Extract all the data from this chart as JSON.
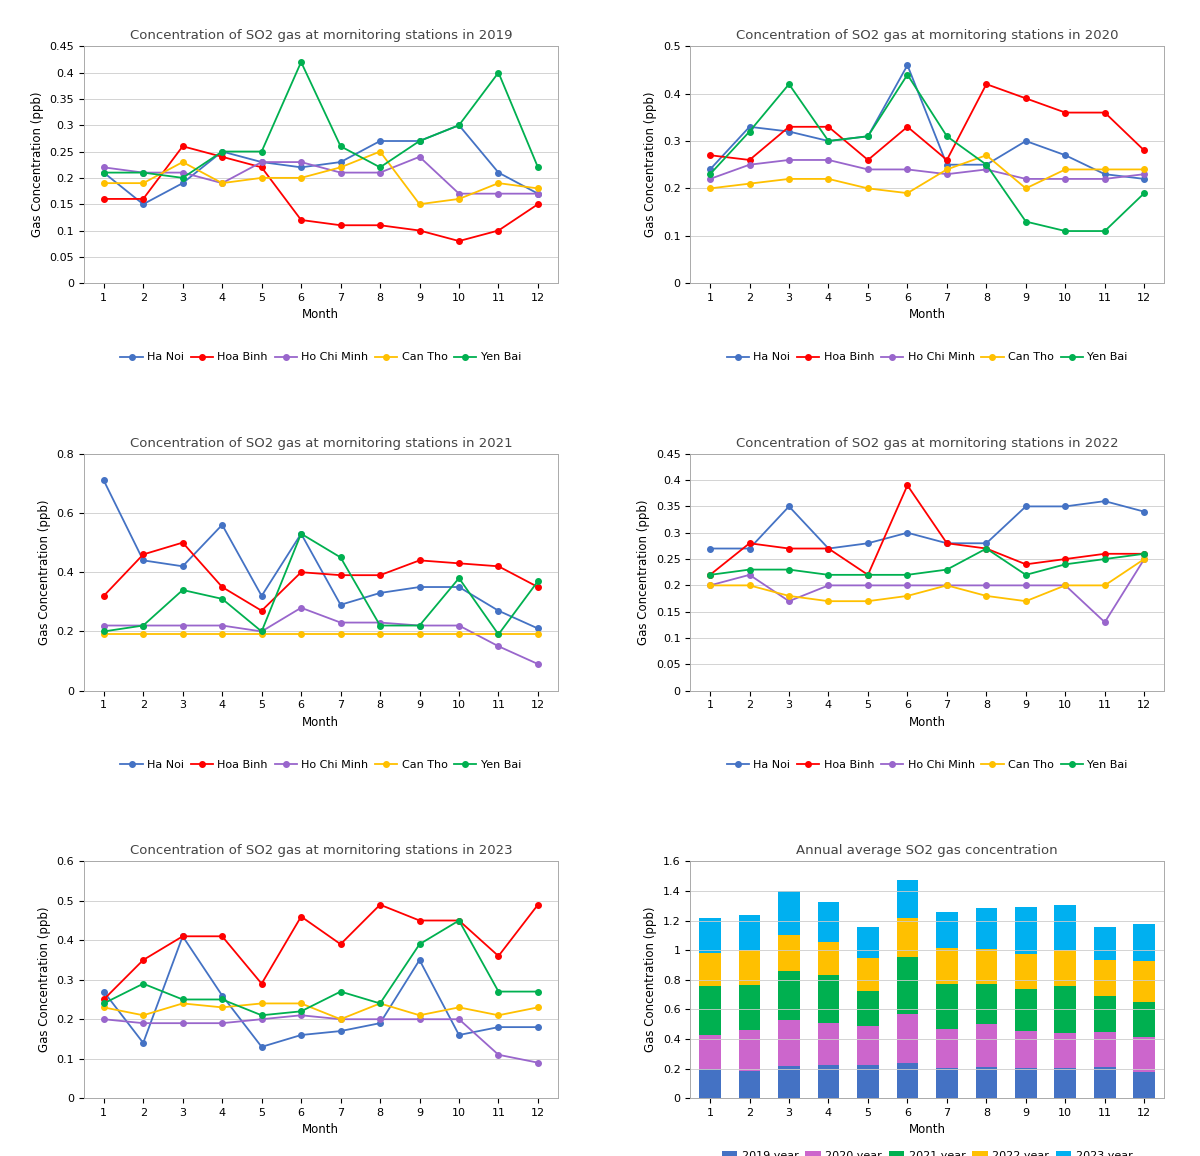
{
  "months": [
    1,
    2,
    3,
    4,
    5,
    6,
    7,
    8,
    9,
    10,
    11,
    12
  ],
  "y2019": {
    "Ha Noi": [
      0.21,
      0.15,
      0.19,
      0.25,
      0.23,
      0.22,
      0.23,
      0.27,
      0.27,
      0.3,
      0.21,
      0.17
    ],
    "Hoa Binh": [
      0.16,
      0.16,
      0.26,
      0.24,
      0.22,
      0.12,
      0.11,
      0.11,
      0.1,
      0.08,
      0.1,
      0.15
    ],
    "Ho Chi Minh": [
      0.22,
      0.21,
      0.21,
      0.19,
      0.23,
      0.23,
      0.21,
      0.21,
      0.24,
      0.17,
      0.17,
      0.17
    ],
    "Can Tho": [
      0.19,
      0.19,
      0.23,
      0.19,
      0.2,
      0.2,
      0.22,
      0.25,
      0.15,
      0.16,
      0.19,
      0.18
    ],
    "Yen Bai": [
      0.21,
      0.21,
      0.2,
      0.25,
      0.25,
      0.42,
      0.26,
      0.22,
      0.27,
      0.3,
      0.4,
      0.22
    ]
  },
  "y2020": {
    "Ha Noi": [
      0.24,
      0.33,
      0.32,
      0.3,
      0.31,
      0.46,
      0.25,
      0.25,
      0.3,
      0.27,
      0.23,
      0.22
    ],
    "Hoa Binh": [
      0.27,
      0.26,
      0.33,
      0.33,
      0.26,
      0.33,
      0.26,
      0.42,
      0.39,
      0.36,
      0.36,
      0.28
    ],
    "Ho Chi Minh": [
      0.22,
      0.25,
      0.26,
      0.26,
      0.24,
      0.24,
      0.23,
      0.24,
      0.22,
      0.22,
      0.22,
      0.23
    ],
    "Can Tho": [
      0.2,
      0.21,
      0.22,
      0.22,
      0.2,
      0.19,
      0.24,
      0.27,
      0.2,
      0.24,
      0.24,
      0.24
    ],
    "Yen Bai": [
      0.23,
      0.32,
      0.42,
      0.3,
      0.31,
      0.44,
      0.31,
      0.25,
      0.13,
      0.11,
      0.11,
      0.19
    ]
  },
  "y2021": {
    "Ha Noi": [
      0.71,
      0.44,
      0.42,
      0.56,
      0.32,
      0.53,
      0.29,
      0.33,
      0.35,
      0.35,
      0.27,
      0.21
    ],
    "Hoa Binh": [
      0.32,
      0.46,
      0.5,
      0.35,
      0.27,
      0.4,
      0.39,
      0.39,
      0.44,
      0.43,
      0.42,
      0.35
    ],
    "Ho Chi Minh": [
      0.22,
      0.22,
      0.22,
      0.22,
      0.2,
      0.28,
      0.23,
      0.23,
      0.22,
      0.22,
      0.15,
      0.09
    ],
    "Can Tho": [
      0.19,
      0.19,
      0.19,
      0.19,
      0.19,
      0.19,
      0.19,
      0.19,
      0.19,
      0.19,
      0.19,
      0.19
    ],
    "Yen Bai": [
      0.2,
      0.22,
      0.34,
      0.31,
      0.2,
      0.53,
      0.45,
      0.22,
      0.22,
      0.38,
      0.19,
      0.37
    ]
  },
  "y2022": {
    "Ha Noi": [
      0.27,
      0.27,
      0.35,
      0.27,
      0.28,
      0.3,
      0.28,
      0.28,
      0.35,
      0.35,
      0.36,
      0.34
    ],
    "Hoa Binh": [
      0.22,
      0.28,
      0.27,
      0.27,
      0.22,
      0.39,
      0.28,
      0.27,
      0.24,
      0.25,
      0.26,
      0.26
    ],
    "Ho Chi Minh": [
      0.2,
      0.22,
      0.17,
      0.2,
      0.2,
      0.2,
      0.2,
      0.2,
      0.2,
      0.2,
      0.13,
      0.25
    ],
    "Can Tho": [
      0.2,
      0.2,
      0.18,
      0.17,
      0.17,
      0.18,
      0.2,
      0.18,
      0.17,
      0.2,
      0.2,
      0.25
    ],
    "Yen Bai": [
      0.22,
      0.23,
      0.23,
      0.22,
      0.22,
      0.22,
      0.23,
      0.27,
      0.22,
      0.24,
      0.25,
      0.26
    ]
  },
  "y2023": {
    "Ha Noi": [
      0.27,
      0.14,
      0.41,
      0.26,
      0.13,
      0.16,
      0.17,
      0.19,
      0.35,
      0.16,
      0.18,
      0.18
    ],
    "Hoa Binh": [
      0.25,
      0.35,
      0.41,
      0.41,
      0.29,
      0.46,
      0.39,
      0.49,
      0.45,
      0.45,
      0.36,
      0.49
    ],
    "Ho Chi Minh": [
      0.2,
      0.19,
      0.19,
      0.19,
      0.2,
      0.21,
      0.2,
      0.2,
      0.2,
      0.2,
      0.11,
      0.09
    ],
    "Can Tho": [
      0.23,
      0.21,
      0.24,
      0.23,
      0.24,
      0.24,
      0.2,
      0.24,
      0.21,
      0.23,
      0.21,
      0.23
    ],
    "Yen Bai": [
      0.24,
      0.29,
      0.25,
      0.25,
      0.21,
      0.22,
      0.27,
      0.24,
      0.39,
      0.45,
      0.27,
      0.27
    ]
  },
  "colors": {
    "Ha Noi": "#4472c4",
    "Hoa Binh": "#ff0000",
    "Ho Chi Minh": "#9966cc",
    "Can Tho": "#ffc000",
    "Yen Bai": "#00b050"
  },
  "bar_colors": {
    "2019 year": "#4472c4",
    "2020 year": "#cc66cc",
    "2021 year": "#00b050",
    "2022 year": "#ffc000",
    "2023 year": "#00b0f0"
  },
  "ylims": {
    "2019": [
      0,
      0.45
    ],
    "2020": [
      0,
      0.5
    ],
    "2021": [
      0,
      0.8
    ],
    "2022": [
      0,
      0.45
    ],
    "2023": [
      0,
      0.6
    ],
    "bar": [
      0,
      1.6
    ]
  },
  "yticks": {
    "2019": [
      0,
      0.05,
      0.1,
      0.15,
      0.2,
      0.25,
      0.3,
      0.35,
      0.4,
      0.45
    ],
    "2020": [
      0,
      0.1,
      0.2,
      0.3,
      0.4,
      0.5
    ],
    "2021": [
      0,
      0.2,
      0.4,
      0.6,
      0.8
    ],
    "2022": [
      0,
      0.05,
      0.1,
      0.15,
      0.2,
      0.25,
      0.3,
      0.35,
      0.4,
      0.45
    ],
    "2023": [
      0,
      0.1,
      0.2,
      0.3,
      0.4,
      0.5,
      0.6
    ],
    "bar": [
      0,
      0.2,
      0.4,
      0.6,
      0.8,
      1.0,
      1.2,
      1.4,
      1.6
    ]
  },
  "titles": {
    "2019": "Concentration of SO2 gas at mornitoring stations in 2019",
    "2020": "Concentration of SO2 gas at mornitoring stations in 2020",
    "2021": "Concentration of SO2 gas at mornitoring stations in 2021",
    "2022": "Concentration of SO2 gas at mornitoring stations in 2022",
    "2023": "Concentration of SO2 gas at mornitoring stations in 2023",
    "bar": "Annual average SO2 gas concentration"
  },
  "xlabel": "Month",
  "ylabel": "Gas Concentration (ppb)",
  "stations": [
    "Ha Noi",
    "Hoa Binh",
    "Ho Chi Minh",
    "Can Tho",
    "Yen Bai"
  ],
  "bar_years": [
    "2019 year",
    "2020 year",
    "2021 year",
    "2022 year",
    "2023 year"
  ]
}
